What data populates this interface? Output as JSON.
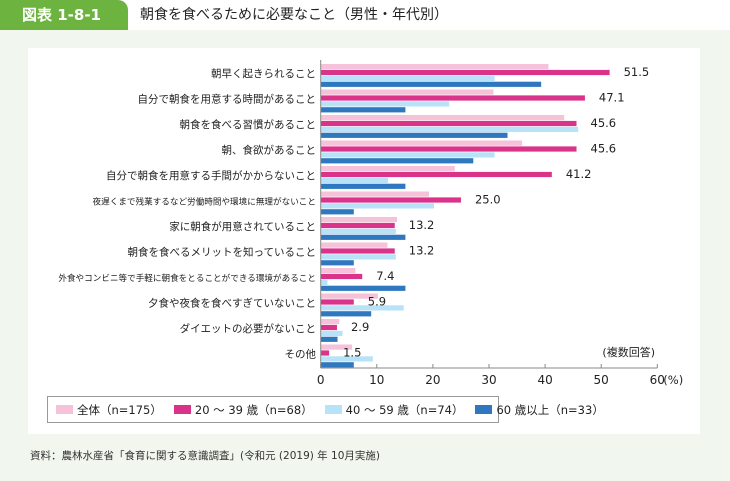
{
  "header": {
    "figure_no": "図表 1-8-1",
    "title": "朝食を食べるために必要なこと（男性・年代別）"
  },
  "chart_data": {
    "type": "bar",
    "orientation": "horizontal",
    "categories": [
      "朝早く起きられること",
      "自分で朝食を用意する時間があること",
      "朝食を食べる習慣があること",
      "朝、食欲があること",
      "自分で朝食を用意する手間がかからないこと",
      "夜遅くまで残業するなど労働時間や環境に無理がないこと",
      "家に朝食が用意されていること",
      "朝食を食べるメリットを知っていること",
      "外食やコンビニ等で手軽に朝食をとることができる環境があること",
      "夕食や夜食を食べすぎていないこと",
      "ダイエットの必要がないこと",
      "その他"
    ],
    "series": [
      {
        "name": "全体（n=175）",
        "color": "#f5c2da",
        "values": [
          40.6,
          30.8,
          43.4,
          35.9,
          23.9,
          19.3,
          13.6,
          11.9,
          6.2,
          10.2,
          3.3,
          5.6
        ]
      },
      {
        "name": "20 ～ 39 歳（n=68）",
        "color": "#d9338a",
        "values": [
          51.5,
          47.1,
          45.6,
          45.6,
          41.2,
          25.0,
          13.2,
          13.2,
          7.4,
          5.9,
          2.9,
          1.5
        ],
        "labeled": true
      },
      {
        "name": "40 ～ 59 歳（n=74）",
        "color": "#b8e2f8",
        "values": [
          31.0,
          22.9,
          45.9,
          31.0,
          12.0,
          20.2,
          13.4,
          13.4,
          1.2,
          14.8,
          3.9,
          9.3
        ]
      },
      {
        "name": "60 歳以上（n=33）",
        "color": "#2f78c0",
        "values": [
          39.3,
          15.1,
          33.3,
          27.2,
          15.1,
          5.9,
          15.1,
          5.9,
          15.1,
          9.0,
          3.0,
          5.9
        ]
      }
    ],
    "data_labels": [
      "51.5",
      "47.1",
      "45.6",
      "45.6",
      "41.2",
      "25.0",
      "13.2",
      "13.2",
      "7.4",
      "5.9",
      "2.9",
      "1.5"
    ],
    "xlim": [
      0,
      60
    ],
    "xticks": [
      "0",
      "10",
      "20",
      "30",
      "40",
      "50",
      "60"
    ],
    "xunit": "(%)",
    "annotation": "(複数回答)",
    "grid": false,
    "legend_placement": "bottom"
  },
  "footnote": "資料：農林水産省「食育に関する意識調査」(令和元 (2019) 年 10月実施)"
}
